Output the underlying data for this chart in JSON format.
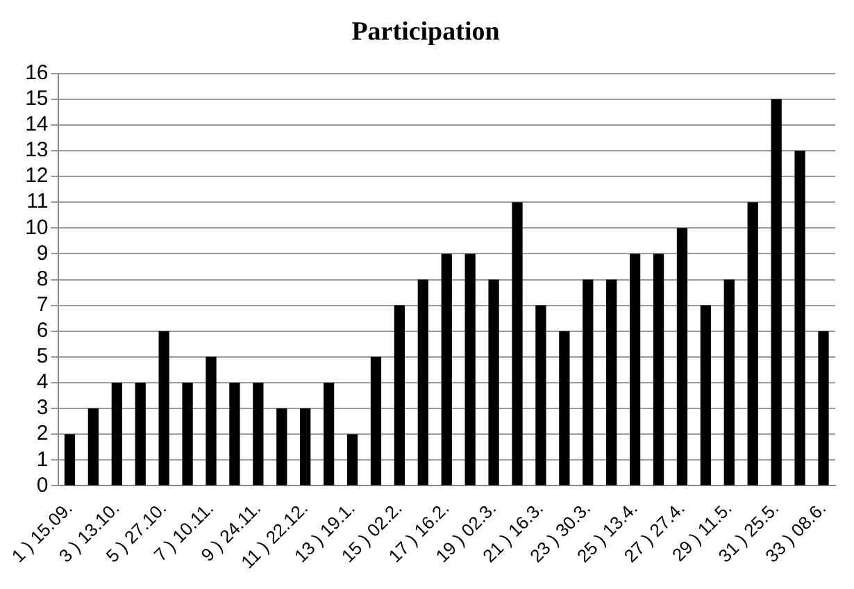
{
  "chart_data": {
    "type": "bar",
    "title": "Participation",
    "categories": [
      "1 ) 15.09.",
      null,
      "3 ) 13.10.",
      null,
      "5 ) 27.10.",
      null,
      "7 ) 10.11.",
      null,
      "9 ) 24.11.",
      null,
      "11 ) 22.12.",
      null,
      "13 ) 19.1.",
      null,
      "15 ) 02.2.",
      null,
      "17 ) 16.2.",
      null,
      "19 ) 02.3.",
      null,
      "21 ) 16.3.",
      null,
      "23 ) 30.3.",
      null,
      "25 ) 13.4.",
      null,
      "27 ) 27.4.",
      null,
      "29 ) 11.5.",
      null,
      "31 ) 25.5.",
      null,
      "33 ) 08.6."
    ],
    "values": [
      2,
      3,
      4,
      4,
      6,
      4,
      5,
      4,
      4,
      3,
      3,
      4,
      2,
      5,
      7,
      8,
      9,
      9,
      8,
      11,
      7,
      6,
      8,
      8,
      9,
      9,
      10,
      7,
      8,
      11,
      15,
      13,
      6
    ],
    "color": "#000000",
    "ylim": [
      0,
      16
    ],
    "yticks": [
      0,
      1,
      2,
      3,
      4,
      5,
      6,
      7,
      8,
      9,
      10,
      11,
      12,
      13,
      14,
      15,
      16
    ],
    "grid": "y",
    "legend": false
  }
}
